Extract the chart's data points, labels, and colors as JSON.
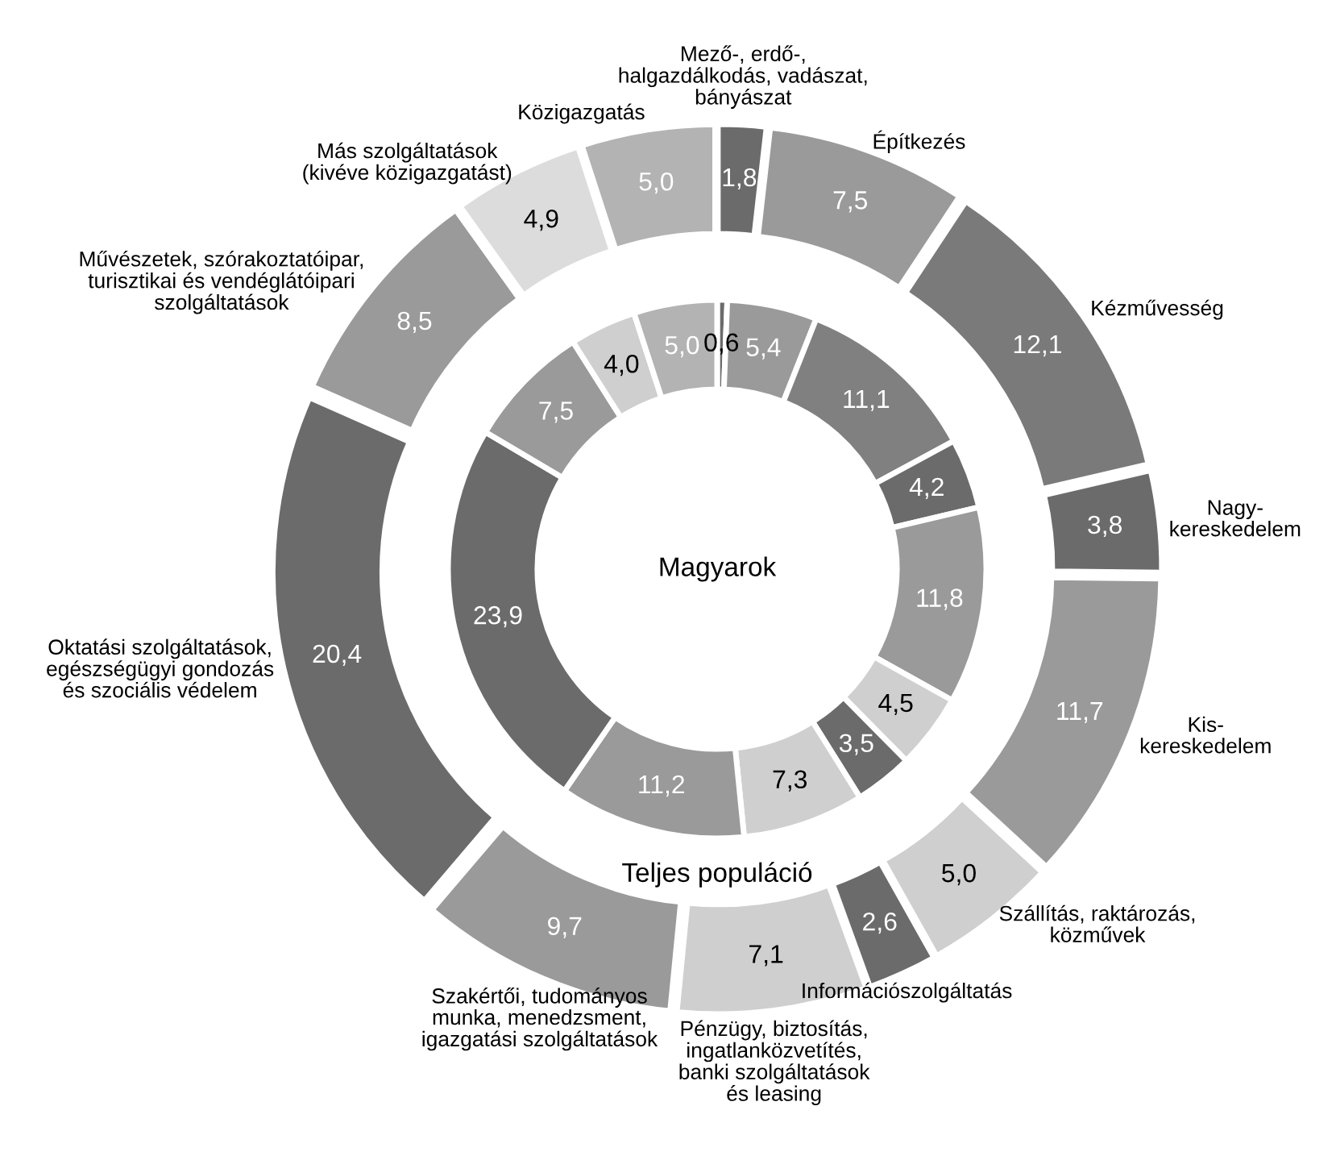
{
  "chart_data": {
    "type": "donut",
    "categories": [
      "Mező-, erdő-,\nhalgazdálkodás, vadászat,\nbányászat",
      "Építkezés",
      "Kézművesség",
      "Nagy-\nkereskedelem",
      "Kis-\nkereskedelem",
      "Szállítás, raktározás,\nközművek",
      "Információszolgáltatás",
      "Pénzügy, biztosítás,\ningatlanközvetítés,\nbanki szolgáltatások\nés leasing",
      "Szakértői, tudományos\nmunka, menedzsment,\nigazgatási szolgáltatások",
      "Oktatási szolgáltatások,\negészségügyi gondozás\nés szociális védelem",
      "Művészetek, szórakoztatóipar,\nturisztikai és vendéglátóipari\nszolgáltatások",
      "Más szolgáltatások\n(kivéve közigazgatást)",
      "Közigazgatás"
    ],
    "series": [
      {
        "name": "Teljes populáció",
        "values": [
          1.8,
          7.5,
          12.1,
          3.8,
          11.7,
          5.0,
          2.6,
          7.1,
          9.7,
          20.4,
          8.5,
          4.9,
          5.0
        ],
        "value_labels": [
          "1,8",
          "7,5",
          "12,1",
          "3,8",
          "11,7",
          "5,0",
          "2,6",
          "7,1",
          "9,7",
          "20,4",
          "8,5",
          "4,9",
          "5,0"
        ],
        "colors": [
          "#6b6b6b",
          "#9a9a9a",
          "#7a7a7a",
          "#6b6b6b",
          "#9a9a9a",
          "#cfcfcf",
          "#6b6b6b",
          "#cfcfcf",
          "#9a9a9a",
          "#6b6b6b",
          "#9a9a9a",
          "#dcdcdc",
          "#b3b3b3"
        ]
      },
      {
        "name": "Magyarok",
        "values": [
          0.6,
          5.4,
          11.1,
          4.2,
          11.8,
          4.5,
          3.5,
          7.3,
          11.2,
          23.9,
          7.5,
          4.0,
          5.0
        ],
        "value_labels": [
          "0,6",
          "5,4",
          "11,1",
          "4,2",
          "11,8",
          "4,5",
          "3,5",
          "7,3",
          "11,2",
          "23,9",
          "7,5",
          "4,0",
          "5,0"
        ],
        "colors": [
          "#6b6b6b",
          "#9a9a9a",
          "#808080",
          "#6b6b6b",
          "#9a9a9a",
          "#cfcfcf",
          "#6b6b6b",
          "#cfcfcf",
          "#9a9a9a",
          "#6b6b6b",
          "#9a9a9a",
          "#cfcfcf",
          "#b3b3b3"
        ]
      }
    ]
  }
}
